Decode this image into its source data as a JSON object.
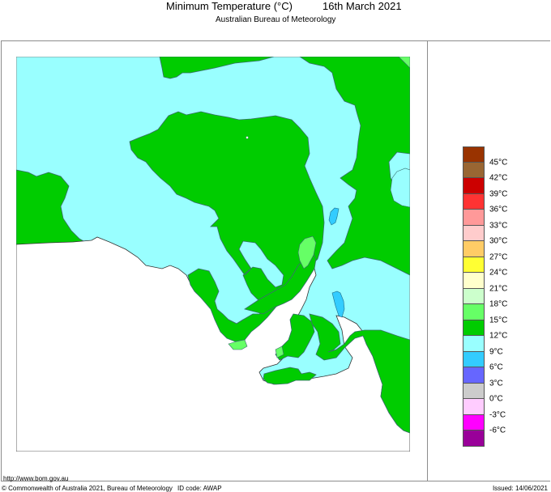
{
  "header": {
    "title": "Minimum Temperature (°C)",
    "date": "16th March 2021",
    "subtitle": "Australian Bureau of Meteorology"
  },
  "map": {
    "region": "South Australia",
    "colors": {
      "cool_9_12": "#99ffff",
      "mild_12_15": "#00cc00",
      "warm_15_18": "#66ff66",
      "cold_6_9": "#33ccff",
      "sea": "#ffffff",
      "outline": "#444444"
    }
  },
  "legend": {
    "swatches": [
      {
        "color": "#993300",
        "label": "45°C"
      },
      {
        "color": "#996633",
        "label": "42°C"
      },
      {
        "color": "#cc0000",
        "label": "39°C"
      },
      {
        "color": "#ff3333",
        "label": "36°C"
      },
      {
        "color": "#ff9999",
        "label": "33°C"
      },
      {
        "color": "#ffcccc",
        "label": "30°C"
      },
      {
        "color": "#ffcc66",
        "label": "27°C"
      },
      {
        "color": "#ffff33",
        "label": "24°C"
      },
      {
        "color": "#ffffcc",
        "label": "21°C"
      },
      {
        "color": "#ccffcc",
        "label": "18°C"
      },
      {
        "color": "#66ff66",
        "label": "15°C"
      },
      {
        "color": "#00cc00",
        "label": "12°C"
      },
      {
        "color": "#99ffff",
        "label": "9°C"
      },
      {
        "color": "#33ccff",
        "label": "6°C"
      },
      {
        "color": "#6666ff",
        "label": "3°C"
      },
      {
        "color": "#cccccc",
        "label": "0°C"
      },
      {
        "color": "#ffccff",
        "label": "-3°C"
      },
      {
        "color": "#ff00ff",
        "label": "-6°C"
      },
      {
        "color": "#990099",
        "label": ""
      }
    ]
  },
  "footer": {
    "url": "http://www.bom.gov.au",
    "copyright": "© Commonwealth of Australia 2021, Bureau of Meteorology",
    "id_code": "ID code: AWAP",
    "issued": "Issued: 14/06/2021"
  }
}
